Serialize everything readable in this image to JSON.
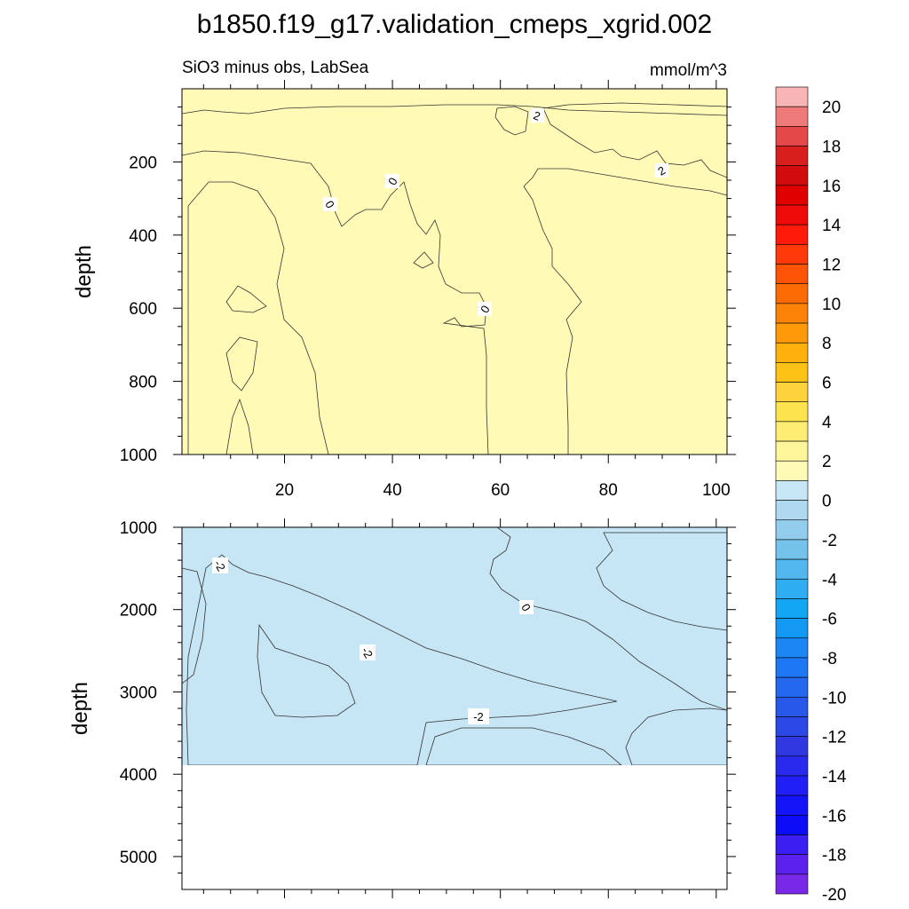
{
  "chart_data": {
    "type": "heatmap",
    "title": "b1850.f19_g17.validation_cmeps_xgrid.002",
    "left_subtitle": "SiO3 minus obs, LabSea",
    "right_subtitle": "mmol/m^3",
    "ylabel": "depth",
    "x_tick_labels": [
      "20",
      "40",
      "60",
      "80",
      "100"
    ],
    "x_range": [
      1,
      102
    ],
    "panels": [
      {
        "name": "upper",
        "y_range": [
          0,
          1000
        ],
        "y_tick_labels": [
          "200",
          "400",
          "600",
          "800",
          "1000"
        ],
        "contour_labels": [
          "2",
          "2",
          "0",
          "0",
          "0"
        ]
      },
      {
        "name": "lower",
        "y_range": [
          1000,
          5400
        ],
        "y_tick_labels": [
          "1000",
          "2000",
          "3000",
          "4000",
          "5000"
        ],
        "contour_labels": [
          "-2",
          "0",
          "-2",
          "-2"
        ],
        "data_max_depth": 3880
      }
    ],
    "colorbar": {
      "labels": [
        "20",
        "18",
        "16",
        "14",
        "12",
        "10",
        "8",
        "6",
        "4",
        "2",
        "0",
        "-2",
        "-4",
        "-6",
        "-8",
        "-10",
        "-12",
        "-14",
        "-16",
        "-18",
        "-20"
      ],
      "colors": [
        "#f9b5b5",
        "#ef7a7a",
        "#e54848",
        "#d91e1e",
        "#d20c0c",
        "#e00000",
        "#ef0a0a",
        "#ff1a0a",
        "#ff3a08",
        "#ff5405",
        "#fd6b05",
        "#fd8308",
        "#fe9a0a",
        "#feb00d",
        "#fdc215",
        "#fdd23b",
        "#fde44f",
        "#feec73",
        "#fff69b",
        "#fffbb6",
        "#c6e5f5",
        "#aed9f0",
        "#93cdee",
        "#75c2ec",
        "#52b7ee",
        "#2eadf2",
        "#12a6f5",
        "#1398f4",
        "#1a87f4",
        "#1e78f4",
        "#2368ef",
        "#2858ea",
        "#2c48e6",
        "#3038e2",
        "#2a2aee",
        "#1f1ff6",
        "#1414f8",
        "#0c0cf6",
        "#3a1ef2",
        "#5c21ed",
        "#7a28e8"
      ]
    },
    "region_colors": {
      "pos_0_2": "#fffbb6",
      "pos_2_4": "#fff69b",
      "pos_4_6": "#fde44f",
      "neg_0_2": "#c6e5f5",
      "neg_2_4": "#aed9f0",
      "neg_4_6": "#93cdee"
    }
  }
}
